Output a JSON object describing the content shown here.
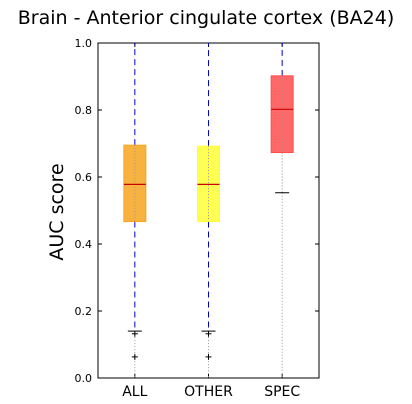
{
  "chart_data": {
    "type": "box",
    "title": "Brain - Anterior cingulate cortex (BA24)",
    "ylabel": "AUC score",
    "xlabel": "",
    "ylim": [
      0.0,
      1.0
    ],
    "yticks": [
      "0.0",
      "0.2",
      "0.4",
      "0.6",
      "0.8",
      "1.0"
    ],
    "grid": false,
    "categories": [
      "ALL",
      "OTHER",
      "SPEC"
    ],
    "boxes": [
      {
        "name": "ALL",
        "q1": 0.467,
        "median": 0.578,
        "q3": 0.695,
        "whisker_low": 0.14,
        "whisker_high": 1.0,
        "outliers": [
          0.132,
          0.063
        ],
        "color": "#f7a51e"
      },
      {
        "name": "OTHER",
        "q1": 0.467,
        "median": 0.578,
        "q3": 0.692,
        "whisker_low": 0.14,
        "whisker_high": 1.0,
        "outliers": [
          0.132,
          0.063
        ],
        "color": "#ffff33"
      },
      {
        "name": "SPEC",
        "q1": 0.673,
        "median": 0.802,
        "q3": 0.902,
        "whisker_low": 0.553,
        "whisker_high": 1.0,
        "outliers": [],
        "color": "#ff4d4d"
      }
    ],
    "colors": {
      "median": "#cc0000",
      "whisker": "#0000cc",
      "cap": "#000000",
      "spec_whisker": "#999999"
    }
  }
}
